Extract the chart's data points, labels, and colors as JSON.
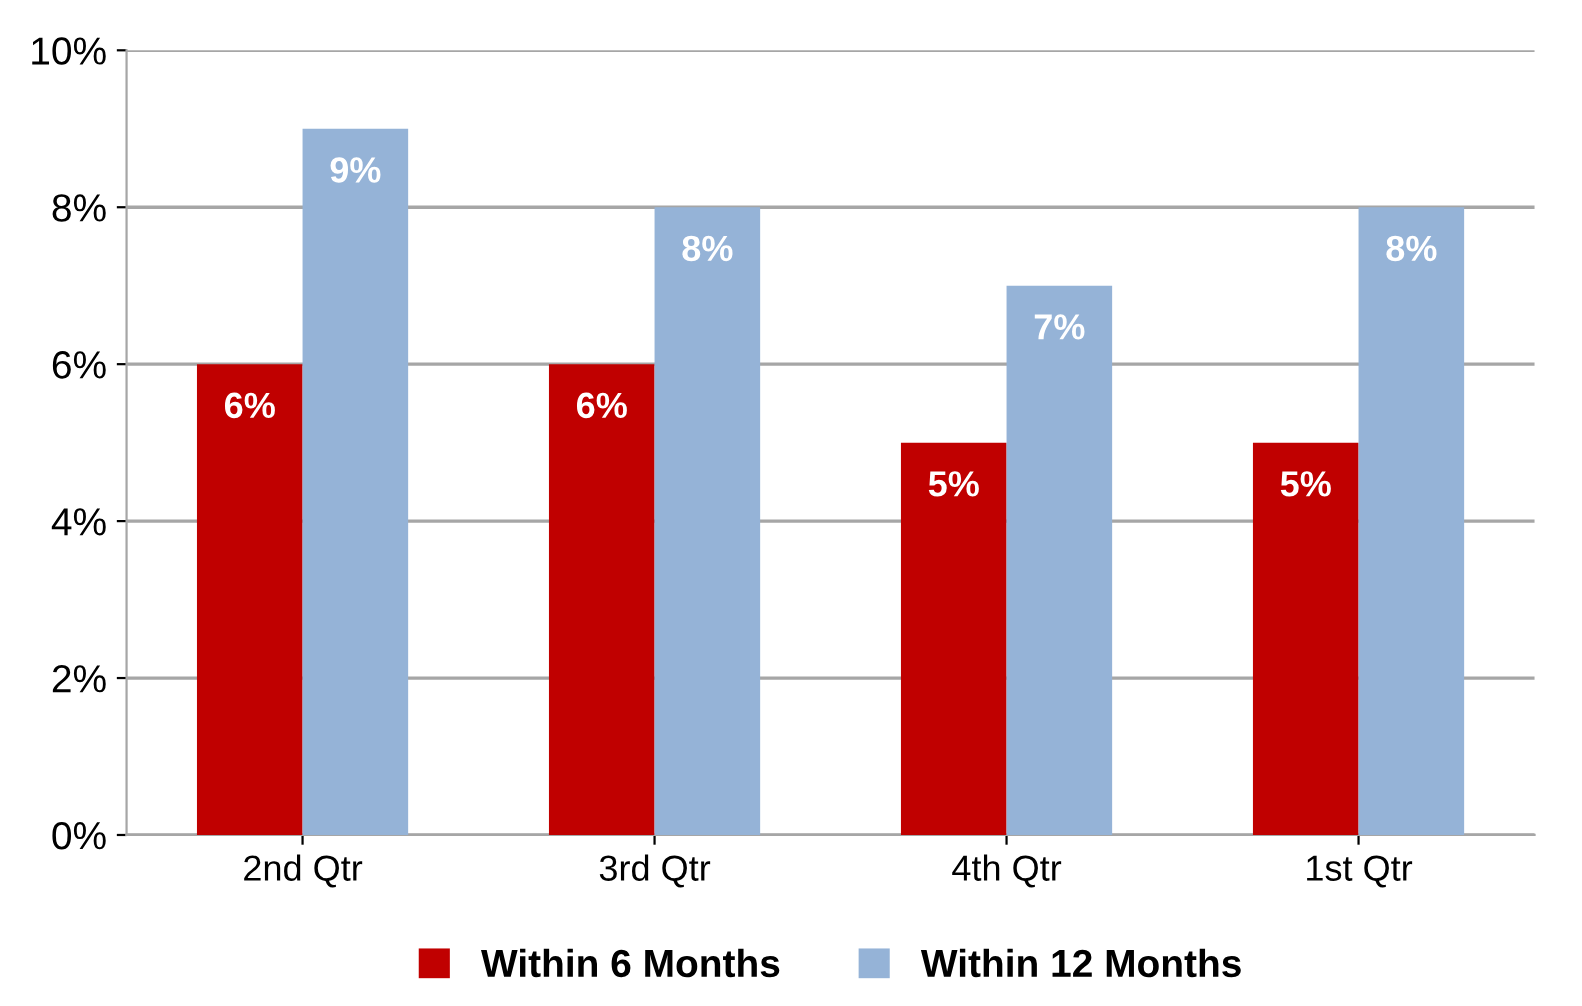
{
  "chart_data": {
    "type": "bar",
    "categories": [
      "2nd Qtr",
      "3rd Qtr",
      "4th Qtr",
      "1st Qtr"
    ],
    "series": [
      {
        "name": "Within 6 Months",
        "color": "#c00000",
        "values": [
          6,
          6,
          5,
          5
        ],
        "value_labels": [
          "6%",
          "6%",
          "5%",
          "5%"
        ]
      },
      {
        "name": "Within 12 Months",
        "color": "#95b3d7",
        "values": [
          9,
          8,
          7,
          8
        ],
        "value_labels": [
          "9%",
          "8%",
          "7%",
          "8%"
        ]
      }
    ],
    "ylim": [
      0,
      10
    ],
    "yticks": [
      {
        "value": 0,
        "label": "0%"
      },
      {
        "value": 2,
        "label": "2%"
      },
      {
        "value": 4,
        "label": "4%"
      },
      {
        "value": 6,
        "label": "6%"
      },
      {
        "value": 8,
        "label": "8%"
      },
      {
        "value": 10,
        "label": "10%"
      }
    ],
    "grid": "y",
    "legend": "bottom"
  }
}
